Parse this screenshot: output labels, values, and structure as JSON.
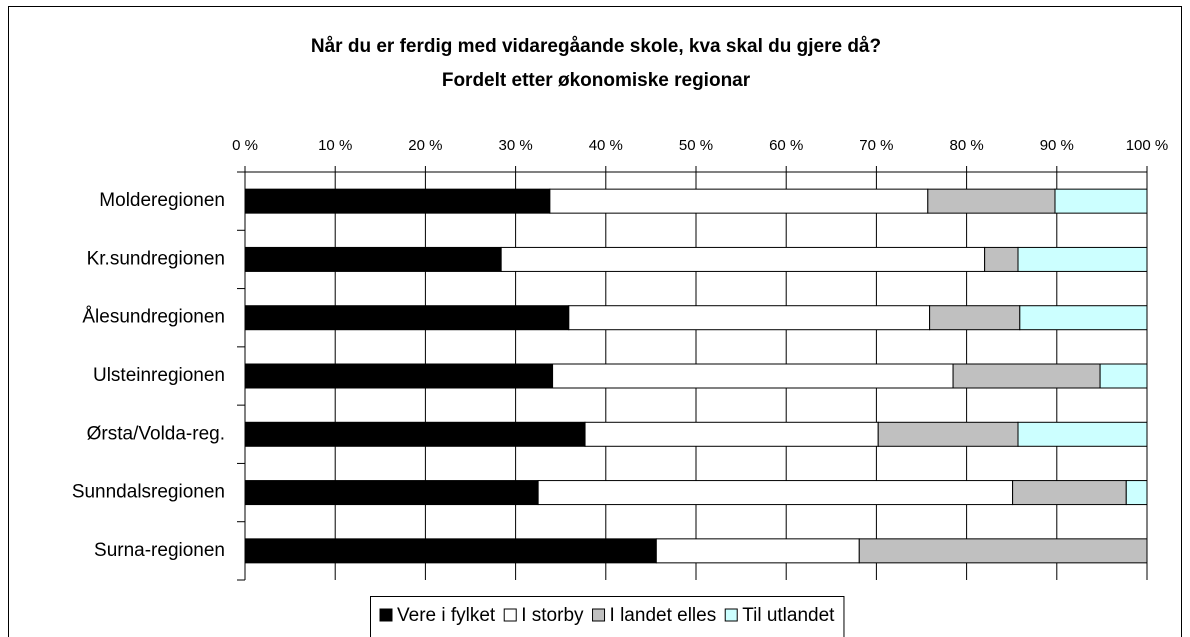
{
  "chart_data": {
    "type": "stacked_bar_horizontal",
    "title": [
      "Når du er ferdig med vidaregåande skole, kva skal du gjere då?",
      "Fordelt etter økonomiske regionar"
    ],
    "categories": [
      "Molderegionen",
      "Kr.sundregionen",
      "Ålesundregionen",
      "Ulsteinregionen",
      "Ørsta/Volda-reg.",
      "Sunndalsregionen",
      "Surna-regionen"
    ],
    "series": [
      {
        "name": "Vere i fylket",
        "color": "#000000",
        "values": [
          33.8,
          28.4,
          35.9,
          34.1,
          37.7,
          32.5,
          45.6
        ]
      },
      {
        "name": "I storby",
        "color": "#ffffff",
        "values": [
          41.9,
          53.6,
          40.0,
          44.4,
          32.5,
          52.6,
          22.5
        ]
      },
      {
        "name": "I landet elles",
        "color": "#c0c0c0",
        "values": [
          14.1,
          3.7,
          10.0,
          16.3,
          15.5,
          12.6,
          31.9
        ]
      },
      {
        "name": "Til utlandet",
        "color": "#ccffff",
        "values": [
          10.2,
          14.3,
          14.1,
          5.2,
          14.3,
          2.3,
          0
        ]
      }
    ],
    "xlim": [
      0,
      100
    ],
    "xticks": [
      {
        "value": 0,
        "label": "0 %"
      },
      {
        "value": 10,
        "label": "10 %"
      },
      {
        "value": 20,
        "label": "20 %"
      },
      {
        "value": 30,
        "label": "30 %"
      },
      {
        "value": 40,
        "label": "40 %"
      },
      {
        "value": 50,
        "label": "50 %"
      },
      {
        "value": 60,
        "label": "60 %"
      },
      {
        "value": 70,
        "label": "70 %"
      },
      {
        "value": 80,
        "label": "80 %"
      },
      {
        "value": 90,
        "label": "90 %"
      },
      {
        "value": 100,
        "label": "100 %"
      }
    ],
    "grid": true,
    "legend": "bottom"
  }
}
